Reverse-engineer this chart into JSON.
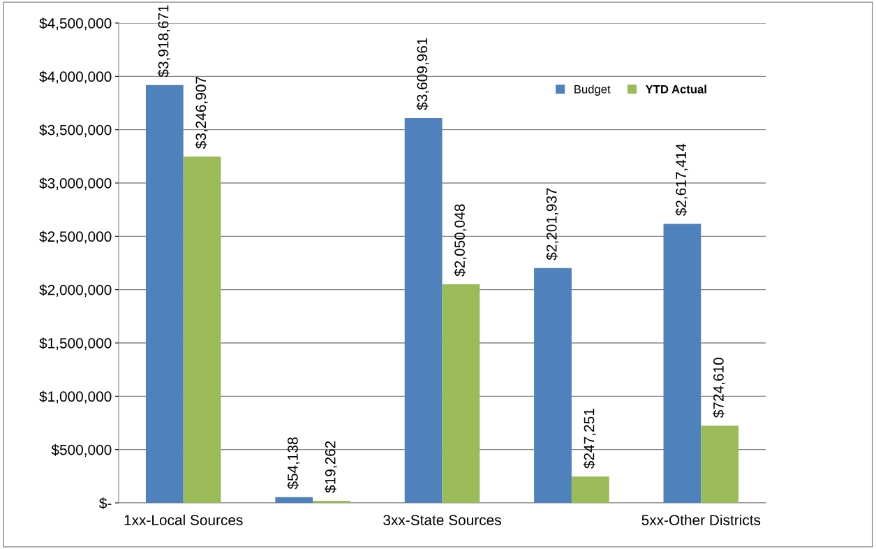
{
  "chart_data": {
    "type": "bar",
    "categories": [
      "1xx-Local Sources",
      null,
      "3xx-State Sources",
      null,
      "5xx-Other Districts"
    ],
    "series": [
      {
        "name": "Budget",
        "color": "#4f81bd",
        "values": [
          3918671,
          54138,
          3609961,
          2201937,
          2617414
        ],
        "value_labels": [
          "$3,918,671",
          "$54,138",
          "$3,609,961",
          "$2,201,937",
          "$2,617,414"
        ]
      },
      {
        "name": "YTD Actual",
        "color": "#9bbb59",
        "values": [
          3246907,
          19262,
          2050048,
          247251,
          724610
        ],
        "value_labels": [
          "$3,246,907",
          "$19,262",
          "$2,050,048",
          "$247,251",
          "$724,610"
        ]
      }
    ],
    "ylim": [
      0,
      4500000
    ],
    "yticks": [
      {
        "value": 0,
        "label": "$-"
      },
      {
        "value": 500000,
        "label": "$500,000"
      },
      {
        "value": 1000000,
        "label": "$1,000,000"
      },
      {
        "value": 1500000,
        "label": "$1,500,000"
      },
      {
        "value": 2000000,
        "label": "$2,000,000"
      },
      {
        "value": 2500000,
        "label": "$2,500,000"
      },
      {
        "value": 3000000,
        "label": "$3,000,000"
      },
      {
        "value": 3500000,
        "label": "$3,500,000"
      },
      {
        "value": 4000000,
        "label": "$4,000,000"
      },
      {
        "value": 4500000,
        "label": "$4,500,000"
      }
    ],
    "grid": "y",
    "legend": "top right"
  }
}
